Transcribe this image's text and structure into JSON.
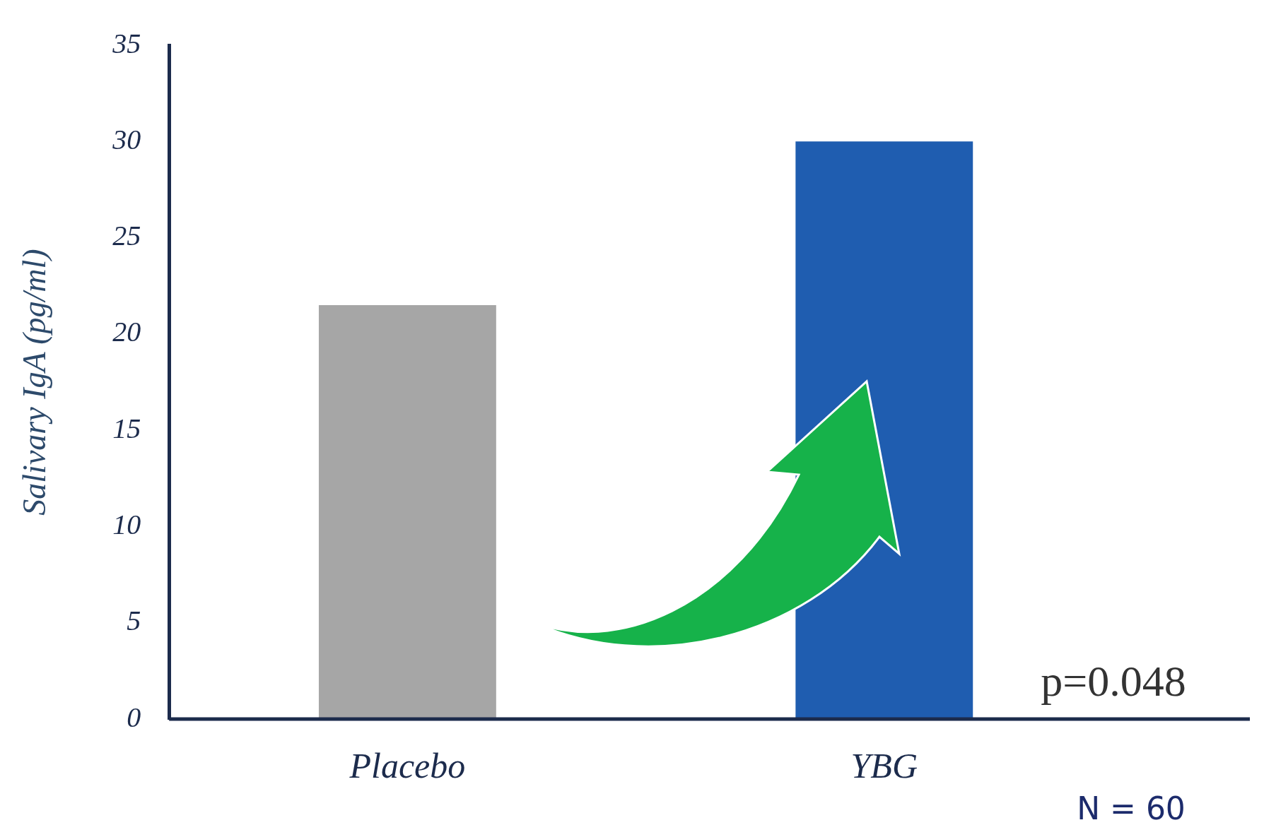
{
  "chart_data": {
    "type": "bar",
    "ylabel": "Salivary IgA (pg/ml)",
    "categories": [
      "Placebo",
      "YBG"
    ],
    "series": [
      {
        "colors": [
          "#a6a6a6",
          "#1f5db0"
        ],
        "values": [
          21.5,
          30
        ]
      }
    ],
    "ylim": [
      0,
      35
    ],
    "yticks": [
      0,
      5,
      10,
      15,
      20,
      25,
      30,
      35
    ],
    "grid": false,
    "legend": false,
    "annotations": [
      "p=0.048",
      "N = 60"
    ]
  }
}
